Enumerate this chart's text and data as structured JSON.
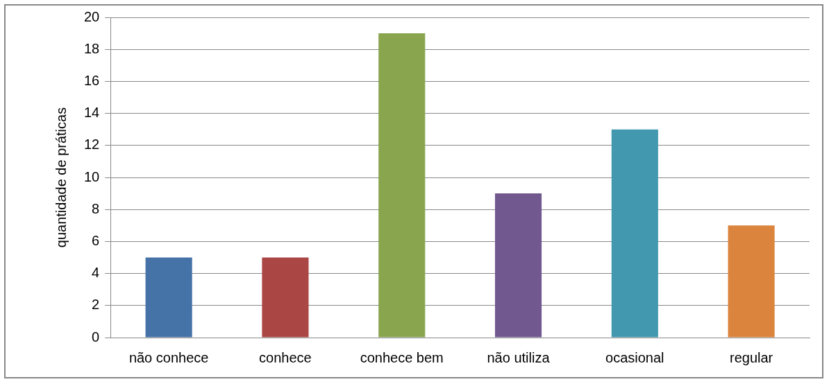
{
  "chart_data": {
    "type": "bar",
    "ylabel": "quantidade de práticas",
    "categories": [
      "não conhece",
      "conhece",
      "conhece bem",
      "não utiliza",
      "ocasional",
      "regular"
    ],
    "values": [
      5,
      5,
      19,
      9,
      13,
      7
    ],
    "colors": [
      "#4572a7",
      "#aa4643",
      "#89a54e",
      "#71588f",
      "#4198af",
      "#db843d"
    ],
    "ylim": [
      0,
      20
    ],
    "yticks": [
      0,
      2,
      4,
      6,
      8,
      10,
      12,
      14,
      16,
      18,
      20
    ],
    "grid": "y",
    "legend": false
  }
}
